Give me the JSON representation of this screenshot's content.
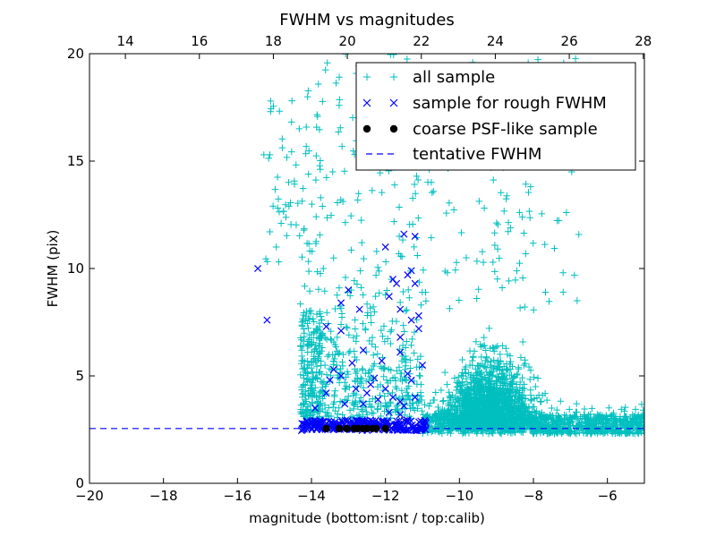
{
  "chart_data": {
    "type": "scatter",
    "title": "FWHM vs magnitudes",
    "xlabel": "magnitude (bottom:isnt / top:calib)",
    "ylabel": "FWHM (pix)",
    "xlim": [
      -20,
      -5
    ],
    "ylim": [
      0,
      20
    ],
    "top_xlim": [
      13.03,
      28.03
    ],
    "x_ticks": [
      -20,
      -18,
      -16,
      -14,
      -12,
      -10,
      -8,
      -6
    ],
    "x_tick_labels": [
      "−20",
      "−18",
      "−16",
      "−14",
      "−12",
      "−10",
      "−8",
      "−6"
    ],
    "top_ticks": [
      14,
      16,
      18,
      20,
      22,
      24,
      26,
      28
    ],
    "top_tick_labels": [
      "14",
      "16",
      "18",
      "20",
      "22",
      "24",
      "26",
      "28"
    ],
    "y_ticks": [
      0,
      5,
      10,
      15,
      20
    ],
    "y_tick_labels": [
      "0",
      "5",
      "10",
      "15",
      "20"
    ],
    "grid": false,
    "legend_position": "top-right",
    "series": [
      {
        "name": "all sample",
        "marker": "+",
        "color": "#00bfbf",
        "distribution": "dense cloud from x=-14.5 to -5 (peak near -9), FWHM 2.3 to 20"
      },
      {
        "name": "sample for rough FWHM",
        "marker": "x",
        "color": "#0000ff",
        "points": [
          [
            -15.45,
            10.0
          ],
          [
            -15.2,
            7.6
          ],
          [
            -13.6,
            7.3
          ],
          [
            -13.2,
            7.1
          ],
          [
            -13.2,
            8.4
          ],
          [
            -13.0,
            9.0
          ],
          [
            -12.7,
            8.1
          ],
          [
            -12.6,
            6.2
          ],
          [
            -12.0,
            11.0
          ],
          [
            -11.9,
            8.7
          ],
          [
            -11.8,
            9.5
          ],
          [
            -11.7,
            9.3
          ],
          [
            -11.6,
            8.1
          ],
          [
            -11.6,
            6.8
          ],
          [
            -11.6,
            6.1
          ],
          [
            -11.5,
            11.6
          ],
          [
            -11.4,
            9.7
          ],
          [
            -11.3,
            9.9
          ],
          [
            -11.2,
            11.5
          ],
          [
            -11.2,
            9.3
          ],
          [
            -11.3,
            7.6
          ],
          [
            -11.1,
            7.8
          ],
          [
            -11.0,
            5.5
          ],
          [
            -11.4,
            5.1
          ],
          [
            -12.3,
            4.9
          ],
          [
            -12.4,
            4.6
          ],
          [
            -12.8,
            4.4
          ],
          [
            -13.2,
            5.0
          ],
          [
            -13.5,
            4.8
          ],
          [
            -13.6,
            4.2
          ],
          [
            -12.0,
            4.4
          ],
          [
            -11.8,
            4.0
          ],
          [
            -11.6,
            3.8
          ],
          [
            -11.5,
            3.6
          ],
          [
            -11.2,
            4.0
          ],
          [
            -11.3,
            4.8
          ],
          [
            -12.1,
            5.7
          ],
          [
            -12.9,
            5.6
          ],
          [
            -13.4,
            5.3
          ],
          [
            -12.6,
            3.7
          ],
          [
            -12.2,
            3.9
          ],
          [
            -11.9,
            3.3
          ],
          [
            -11.6,
            3.2
          ],
          [
            -13.9,
            3.5
          ],
          [
            -13.1,
            3.7
          ],
          [
            -12.5,
            4.2
          ],
          [
            -11.1,
            7.2
          ]
        ],
        "band": {
          "x": [
            -14.3,
            -10.9
          ],
          "y": [
            2.45,
            2.95
          ],
          "note": "dense cluster along FWHM about 2.7"
        }
      },
      {
        "name": "coarse PSF-like sample",
        "marker": "o",
        "color": "#000000",
        "points": [
          [
            -13.6,
            2.55
          ],
          [
            -13.25,
            2.55
          ],
          [
            -13.05,
            2.55
          ],
          [
            -12.85,
            2.55
          ],
          [
            -12.75,
            2.55
          ],
          [
            -12.6,
            2.55
          ],
          [
            -12.5,
            2.55
          ],
          [
            -12.35,
            2.55
          ],
          [
            -12.25,
            2.55
          ],
          [
            -12.0,
            2.55
          ]
        ]
      },
      {
        "name": "tentative FWHM",
        "style": "dashed-line",
        "color": "#0000ff",
        "y": 2.55
      }
    ]
  }
}
